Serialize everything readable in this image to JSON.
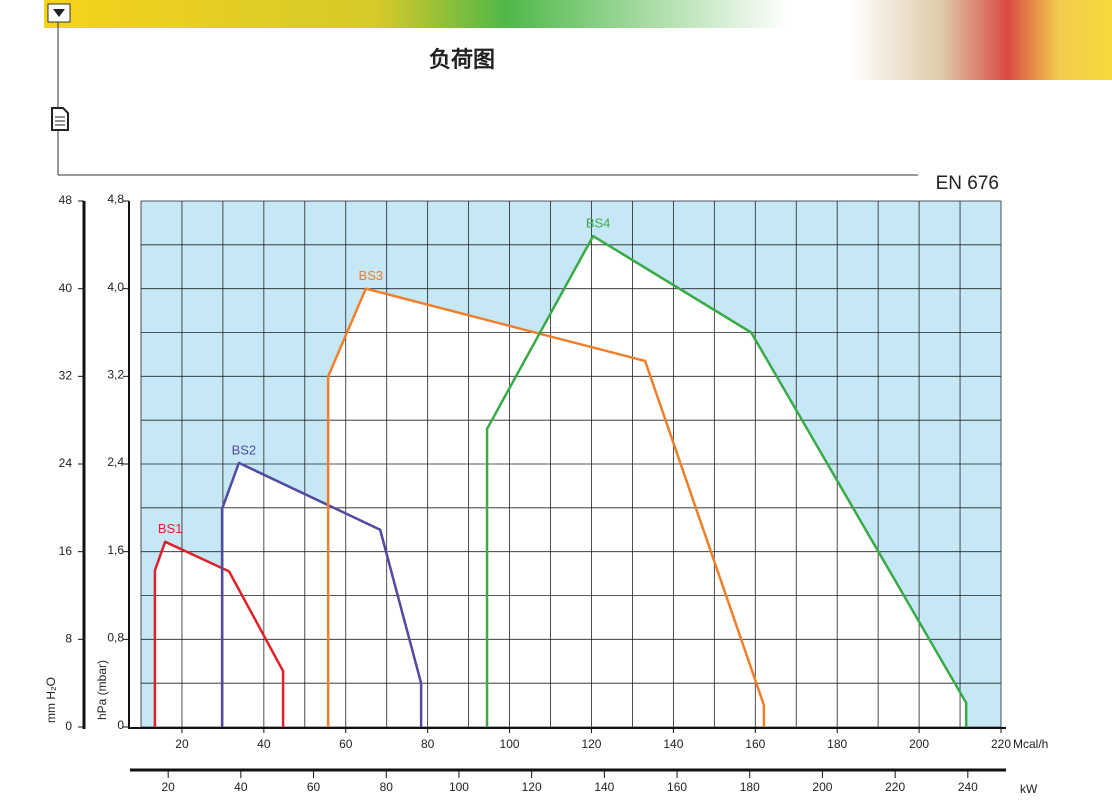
{
  "chart_data": {
    "type": "line",
    "title": "负荷图",
    "standard": "EN 676",
    "xlabel": "Mcal/h",
    "ylabel": "hPa (mbar)",
    "y2label": "mm H₂O",
    "x2label": "kW",
    "xlim": [
      10,
      220
    ],
    "xticks": [
      20,
      40,
      60,
      80,
      100,
      120,
      140,
      160,
      180,
      200,
      220
    ],
    "xgrid_minor": [
      10,
      30,
      50,
      70,
      90,
      110,
      130,
      150,
      170,
      190,
      210
    ],
    "ylim": [
      0,
      4.8
    ],
    "yticks": [
      0,
      {
        "value": 0.8,
        "label": "0,8"
      },
      {
        "value": 1.6,
        "label": "1,6"
      },
      {
        "value": 2.4,
        "label": "2,4"
      },
      {
        "value": 3.2,
        "label": "3,2"
      },
      {
        "value": 4.0,
        "label": "4,0"
      },
      {
        "value": 4.8,
        "label": "4,8"
      }
    ],
    "ygrid_minor": [
      0.4,
      1.2,
      2.0,
      2.8,
      3.6,
      4.4
    ],
    "y2lim": [
      0,
      48
    ],
    "y2ticks": [
      0,
      8,
      16,
      24,
      32,
      40,
      48
    ],
    "x2lim": [
      9.5,
      250.5
    ],
    "x2ticks": [
      20,
      40,
      60,
      80,
      100,
      120,
      140,
      160,
      180,
      200,
      220,
      240
    ],
    "grid": true,
    "background_color": "#c6e8f6",
    "series": [
      {
        "name": "BS1",
        "color": "#e0202a",
        "x": [
          13.4,
          13.4,
          15.9,
          31.5,
          44.7,
          44.7
        ],
        "values": [
          0,
          1.43,
          1.69,
          1.42,
          0.51,
          0
        ]
      },
      {
        "name": "BS2",
        "color": "#524aa0",
        "x": [
          29.8,
          29.8,
          33.9,
          68.4,
          78.4,
          78.4
        ],
        "values": [
          0,
          1.99,
          2.41,
          1.8,
          0.4,
          0
        ]
      },
      {
        "name": "BS3",
        "color": "#f07f2a",
        "x": [
          55.7,
          55.7,
          64.9,
          133.1,
          162.1,
          162.1
        ],
        "values": [
          0,
          3.2,
          4.0,
          3.34,
          0.2,
          0
        ]
      },
      {
        "name": "BS4",
        "color": "#3aaa48",
        "x": [
          94.5,
          94.5,
          120.4,
          159,
          211.5,
          211.5
        ],
        "values": [
          0,
          2.72,
          4.48,
          3.6,
          0.22,
          0
        ]
      }
    ]
  }
}
